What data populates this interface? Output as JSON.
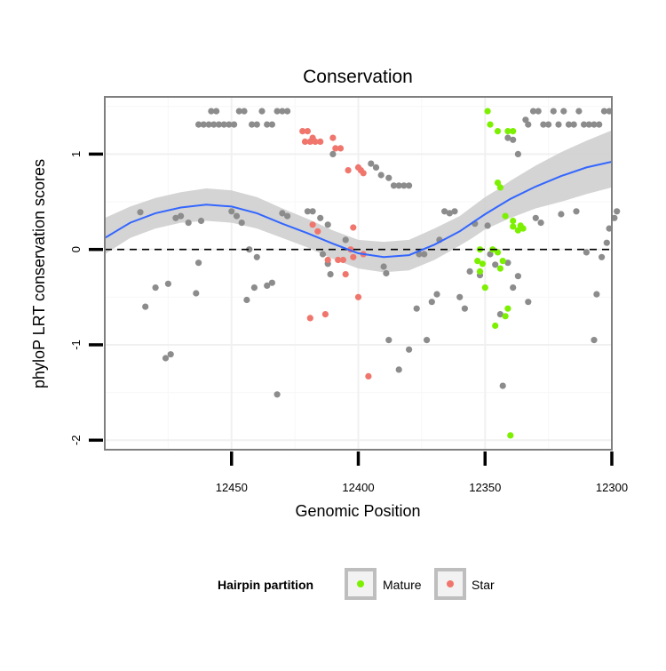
{
  "chart_data": {
    "type": "scatter",
    "title": "Conservation",
    "xlabel": "Genomic Position",
    "ylabel": "phyloP LRT conservation scores",
    "x_reversed": true,
    "xlim": [
      12300,
      12500
    ],
    "ylim": [
      -2.1,
      1.6
    ],
    "x_ticks": [
      12450,
      12400,
      12350,
      12300
    ],
    "y_ticks": [
      -2,
      -1,
      0,
      1
    ],
    "reference_line_y": 0,
    "grid": true,
    "legend": {
      "title": "Hairpin partition",
      "placement": "bottom",
      "entries": [
        {
          "name": "Mature",
          "color": "#7cf000"
        },
        {
          "name": "Star",
          "color": "#f0766d"
        }
      ]
    },
    "colors": {
      "other": "#8c8c8c",
      "mature": "#7cf000",
      "star": "#f0766d",
      "smooth": "#3366ff",
      "ribbon": "#cccccc"
    },
    "series": [
      {
        "group": "other",
        "points": [
          [
            12486,
            0.39
          ],
          [
            12484,
            -0.6
          ],
          [
            12480,
            -0.4
          ],
          [
            12476,
            -1.14
          ],
          [
            12474,
            -1.1
          ],
          [
            12475,
            -0.36
          ],
          [
            12472,
            0.33
          ],
          [
            12470,
            0.35
          ],
          [
            12467,
            0.28
          ],
          [
            12464,
            -0.46
          ],
          [
            12463,
            -0.14
          ],
          [
            12462,
            0.3
          ],
          [
            12458,
            1.45
          ],
          [
            12456,
            1.45
          ],
          [
            12463,
            1.31
          ],
          [
            12461,
            1.31
          ],
          [
            12459,
            1.31
          ],
          [
            12457,
            1.31
          ],
          [
            12455,
            1.31
          ],
          [
            12453,
            1.31
          ],
          [
            12451,
            1.31
          ],
          [
            12449,
            1.31
          ],
          [
            12447,
            1.45
          ],
          [
            12445,
            1.45
          ],
          [
            12442,
            1.31
          ],
          [
            12440,
            1.31
          ],
          [
            12438,
            1.45
          ],
          [
            12436,
            1.31
          ],
          [
            12434,
            1.31
          ],
          [
            12432,
            1.45
          ],
          [
            12430,
            1.45
          ],
          [
            12428,
            1.45
          ],
          [
            12450,
            0.4
          ],
          [
            12448,
            0.35
          ],
          [
            12446,
            0.28
          ],
          [
            12444,
            -0.53
          ],
          [
            12443,
            0.0
          ],
          [
            12441,
            -0.4
          ],
          [
            12440,
            -0.08
          ],
          [
            12436,
            -0.38
          ],
          [
            12434,
            -0.35
          ],
          [
            12432,
            -1.52
          ],
          [
            12430,
            0.38
          ],
          [
            12428,
            0.35
          ],
          [
            12420,
            0.4
          ],
          [
            12418,
            0.4
          ],
          [
            12415,
            0.33
          ],
          [
            12412,
            -0.15
          ],
          [
            12414,
            -0.05
          ],
          [
            12411,
            -0.26
          ],
          [
            12412,
            0.26
          ],
          [
            12405,
            0.1
          ],
          [
            12410,
            1.0
          ],
          [
            12395,
            0.9
          ],
          [
            12393,
            0.86
          ],
          [
            12391,
            0.78
          ],
          [
            12388,
            0.75
          ],
          [
            12386,
            0.67
          ],
          [
            12384,
            0.67
          ],
          [
            12382,
            0.67
          ],
          [
            12380,
            0.67
          ],
          [
            12390,
            -0.18
          ],
          [
            12389,
            -0.25
          ],
          [
            12388,
            -0.95
          ],
          [
            12384,
            -1.26
          ],
          [
            12380,
            -1.05
          ],
          [
            12377,
            -0.62
          ],
          [
            12376,
            -0.05
          ],
          [
            12374,
            -0.05
          ],
          [
            12373,
            -0.95
          ],
          [
            12371,
            -0.55
          ],
          [
            12369,
            -0.47
          ],
          [
            12368,
            0.1
          ],
          [
            12366,
            0.4
          ],
          [
            12364,
            0.38
          ],
          [
            12362,
            0.4
          ],
          [
            12360,
            -0.5
          ],
          [
            12358,
            -0.62
          ],
          [
            12356,
            -0.23
          ],
          [
            12354,
            0.27
          ],
          [
            12352,
            -0.27
          ],
          [
            12349,
            0.25
          ],
          [
            12348,
            -0.05
          ],
          [
            12346,
            -0.16
          ],
          [
            12344,
            -0.68
          ],
          [
            12341,
            -0.14
          ],
          [
            12339,
            -0.4
          ],
          [
            12337,
            -0.28
          ],
          [
            12333,
            -0.55
          ],
          [
            12330,
            0.33
          ],
          [
            12328,
            0.28
          ],
          [
            12343,
            -1.43
          ],
          [
            12341,
            1.17
          ],
          [
            12339,
            1.15
          ],
          [
            12337,
            1.0
          ],
          [
            12334,
            1.36
          ],
          [
            12333,
            1.31
          ],
          [
            12331,
            1.45
          ],
          [
            12329,
            1.45
          ],
          [
            12327,
            1.31
          ],
          [
            12325,
            1.31
          ],
          [
            12323,
            1.45
          ],
          [
            12321,
            1.31
          ],
          [
            12319,
            1.45
          ],
          [
            12317,
            1.31
          ],
          [
            12315,
            1.31
          ],
          [
            12313,
            1.45
          ],
          [
            12311,
            1.31
          ],
          [
            12309,
            1.31
          ],
          [
            12307,
            1.31
          ],
          [
            12305,
            1.31
          ],
          [
            12303,
            1.45
          ],
          [
            12301,
            1.45
          ],
          [
            12320,
            0.37
          ],
          [
            12314,
            0.4
          ],
          [
            12310,
            -0.03
          ],
          [
            12307,
            -0.95
          ],
          [
            12306,
            -0.47
          ],
          [
            12304,
            -0.08
          ],
          [
            12302,
            0.07
          ],
          [
            12301,
            0.22
          ],
          [
            12299,
            0.33
          ],
          [
            12298,
            0.4
          ]
        ]
      },
      {
        "group": "star",
        "points": [
          [
            12422,
            1.24
          ],
          [
            12420,
            1.24
          ],
          [
            12418,
            1.17
          ],
          [
            12421,
            1.13
          ],
          [
            12419,
            1.13
          ],
          [
            12417,
            1.13
          ],
          [
            12415,
            1.13
          ],
          [
            12410,
            1.17
          ],
          [
            12409,
            1.06
          ],
          [
            12407,
            1.06
          ],
          [
            12400,
            0.86
          ],
          [
            12404,
            0.83
          ],
          [
            12398,
            0.8
          ],
          [
            12399,
            0.83
          ],
          [
            12418,
            0.26
          ],
          [
            12416,
            0.19
          ],
          [
            12419,
            -0.72
          ],
          [
            12412,
            -0.11
          ],
          [
            12408,
            -0.11
          ],
          [
            12406,
            -0.11
          ],
          [
            12405,
            -0.26
          ],
          [
            12402,
            -0.08
          ],
          [
            12400,
            -0.5
          ],
          [
            12398,
            -0.05
          ],
          [
            12396,
            -1.33
          ],
          [
            12402,
            0.23
          ],
          [
            12413,
            -0.68
          ],
          [
            12403,
            0.0
          ]
        ]
      },
      {
        "group": "mature",
        "points": [
          [
            12349,
            1.45
          ],
          [
            12348,
            1.31
          ],
          [
            12345,
            1.24
          ],
          [
            12341,
            1.24
          ],
          [
            12339,
            1.24
          ],
          [
            12345,
            0.7
          ],
          [
            12344,
            0.65
          ],
          [
            12337,
            0.2
          ],
          [
            12339,
            0.24
          ],
          [
            12342,
            0.35
          ],
          [
            12339,
            0.3
          ],
          [
            12344,
            -0.2
          ],
          [
            12350,
            -0.4
          ],
          [
            12352,
            -0.23
          ],
          [
            12351,
            -0.15
          ],
          [
            12353,
            -0.12
          ],
          [
            12352,
            0.0
          ],
          [
            12347,
            0.0
          ],
          [
            12345,
            -0.03
          ],
          [
            12343,
            -0.12
          ],
          [
            12346,
            -0.8
          ],
          [
            12342,
            -0.7
          ],
          [
            12341,
            -0.62
          ],
          [
            12340,
            -1.95
          ],
          [
            12336,
            0.25
          ],
          [
            12335,
            0.22
          ]
        ]
      }
    ],
    "smooth": {
      "x": [
        12500,
        12490,
        12480,
        12470,
        12460,
        12450,
        12440,
        12430,
        12420,
        12410,
        12400,
        12390,
        12380,
        12370,
        12360,
        12355,
        12350,
        12345,
        12340,
        12330,
        12320,
        12310,
        12300
      ],
      "y": [
        0.12,
        0.28,
        0.38,
        0.44,
        0.47,
        0.45,
        0.38,
        0.27,
        0.17,
        0.06,
        -0.04,
        -0.08,
        -0.06,
        0.05,
        0.19,
        0.28,
        0.37,
        0.45,
        0.53,
        0.66,
        0.77,
        0.86,
        0.92
      ],
      "lower": [
        -0.05,
        0.12,
        0.22,
        0.28,
        0.3,
        0.28,
        0.22,
        0.12,
        0.02,
        -0.1,
        -0.2,
        -0.24,
        -0.22,
        -0.11,
        0.04,
        0.12,
        0.21,
        0.27,
        0.33,
        0.43,
        0.5,
        0.58,
        0.65
      ],
      "upper": [
        0.33,
        0.45,
        0.54,
        0.6,
        0.64,
        0.62,
        0.55,
        0.43,
        0.32,
        0.2,
        0.1,
        0.08,
        0.1,
        0.22,
        0.35,
        0.45,
        0.55,
        0.63,
        0.72,
        0.88,
        1.02,
        1.14,
        1.25
      ]
    }
  }
}
